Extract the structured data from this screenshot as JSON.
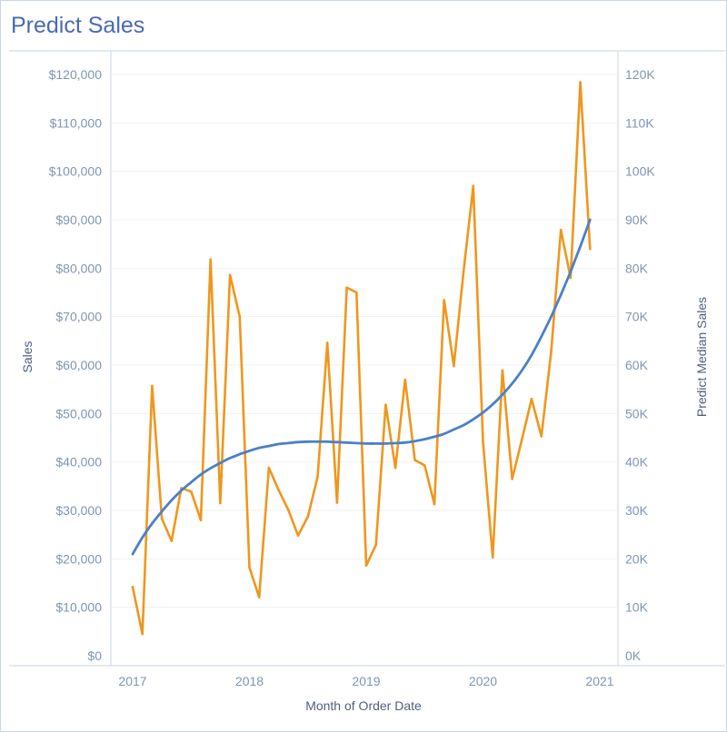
{
  "title": "Predict Sales",
  "chart_data": {
    "type": "line",
    "xlabel": "Month of Order Date",
    "ylabel_left": "Sales",
    "ylabel_right": "Predict Median Sales",
    "x_ticks": [
      "2017",
      "2018",
      "2019",
      "2020",
      "2021"
    ],
    "y_left_ticks": [
      "$0",
      "$10,000",
      "$20,000",
      "$30,000",
      "$40,000",
      "$50,000",
      "$60,000",
      "$70,000",
      "$80,000",
      "$90,000",
      "$100,000",
      "$110,000",
      "$120,000"
    ],
    "y_right_ticks": [
      "0K",
      "10K",
      "20K",
      "30K",
      "40K",
      "50K",
      "60K",
      "70K",
      "80K",
      "90K",
      "100K",
      "110K",
      "120K"
    ],
    "ylim": [
      0,
      120000
    ],
    "xlim": [
      "2017-01",
      "2020-12"
    ],
    "grid": true,
    "colors": {
      "sales": "#f0961c",
      "predict": "#4a80c8"
    },
    "series": [
      {
        "name": "Sales",
        "x": [
          "2017-01",
          "2017-02",
          "2017-03",
          "2017-04",
          "2017-05",
          "2017-06",
          "2017-07",
          "2017-08",
          "2017-09",
          "2017-10",
          "2017-11",
          "2017-12",
          "2018-01",
          "2018-02",
          "2018-03",
          "2018-04",
          "2018-05",
          "2018-06",
          "2018-07",
          "2018-08",
          "2018-09",
          "2018-10",
          "2018-11",
          "2018-12",
          "2019-01",
          "2019-02",
          "2019-03",
          "2019-04",
          "2019-05",
          "2019-06",
          "2019-07",
          "2019-08",
          "2019-09",
          "2019-10",
          "2019-11",
          "2019-12",
          "2020-01",
          "2020-02",
          "2020-03",
          "2020-04",
          "2020-05",
          "2020-06",
          "2020-07",
          "2020-08",
          "2020-09",
          "2020-10",
          "2020-11",
          "2020-12"
        ],
        "values": [
          14200,
          4500,
          55700,
          28300,
          23700,
          34600,
          33900,
          28000,
          81800,
          31500,
          78600,
          70000,
          18200,
          12100,
          38800,
          34200,
          30100,
          24800,
          28700,
          36900,
          64600,
          31600,
          76000,
          75000,
          18600,
          22900,
          51800,
          38800,
          57000,
          40400,
          39300,
          31300,
          73400,
          59800,
          79300,
          97000,
          44200,
          20300,
          58900,
          36500,
          44600,
          53000,
          45300,
          62700,
          87900,
          78000,
          118400,
          84000
        ]
      },
      {
        "name": "Predict Median Sales",
        "x": [
          "2017-01",
          "2017-02",
          "2017-03",
          "2017-04",
          "2017-05",
          "2017-06",
          "2017-07",
          "2017-08",
          "2017-09",
          "2017-10",
          "2017-11",
          "2017-12",
          "2018-01",
          "2018-02",
          "2018-03",
          "2018-04",
          "2018-05",
          "2018-06",
          "2018-07",
          "2018-08",
          "2018-09",
          "2018-10",
          "2018-11",
          "2018-12",
          "2019-01",
          "2019-02",
          "2019-03",
          "2019-04",
          "2019-05",
          "2019-06",
          "2019-07",
          "2019-08",
          "2019-09",
          "2019-10",
          "2019-11",
          "2019-12",
          "2020-01",
          "2020-02",
          "2020-03",
          "2020-04",
          "2020-05",
          "2020-06",
          "2020-07",
          "2020-08",
          "2020-09",
          "2020-10",
          "2020-11",
          "2020-12"
        ],
        "values": [
          21000,
          24400,
          27300,
          29800,
          32100,
          34100,
          35800,
          37400,
          38700,
          39800,
          40800,
          41600,
          42300,
          42900,
          43300,
          43700,
          43900,
          44100,
          44200,
          44200,
          44200,
          44100,
          44000,
          43900,
          43800,
          43800,
          43800,
          43900,
          44000,
          44300,
          44700,
          45200,
          45800,
          46700,
          47600,
          48800,
          50200,
          51900,
          53900,
          56200,
          58900,
          62100,
          65900,
          70000,
          74500,
          79300,
          84500,
          90000
        ]
      }
    ]
  }
}
